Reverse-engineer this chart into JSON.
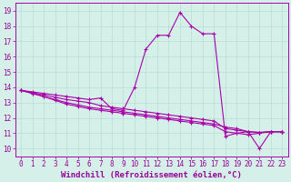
{
  "xlabel": "Windchill (Refroidissement éolien,°C)",
  "ylabel": "",
  "bg_color": "#d4f0e8",
  "line_color": "#aa00aa",
  "grid_color": "#b8ddd0",
  "xlim": [
    -0.5,
    23.5
  ],
  "ylim": [
    9.5,
    19.5
  ],
  "xticks": [
    0,
    1,
    2,
    3,
    4,
    5,
    6,
    7,
    8,
    9,
    10,
    11,
    12,
    13,
    14,
    15,
    16,
    17,
    18,
    19,
    20,
    21,
    22,
    23
  ],
  "yticks": [
    10,
    11,
    12,
    13,
    14,
    15,
    16,
    17,
    18,
    19
  ],
  "series": [
    [
      13.8,
      13.7,
      13.6,
      13.5,
      13.4,
      13.3,
      13.2,
      13.3,
      12.6,
      12.5,
      14.0,
      16.5,
      17.4,
      17.4,
      18.9,
      18.0,
      17.5,
      17.5,
      10.8,
      11.0,
      11.1,
      10.0,
      11.1,
      11.1
    ],
    [
      13.8,
      13.65,
      13.5,
      13.35,
      13.2,
      13.1,
      13.0,
      12.8,
      12.7,
      12.6,
      12.5,
      12.4,
      12.3,
      12.2,
      12.1,
      12.0,
      11.9,
      11.8,
      11.3,
      11.2,
      11.1,
      11.05,
      11.1,
      11.1
    ],
    [
      13.8,
      13.6,
      13.4,
      13.2,
      13.0,
      12.85,
      12.7,
      12.6,
      12.5,
      12.4,
      12.3,
      12.2,
      12.1,
      12.0,
      11.9,
      11.8,
      11.7,
      11.6,
      11.4,
      11.3,
      11.1,
      11.05,
      11.1,
      11.1
    ],
    [
      13.8,
      13.6,
      13.4,
      13.15,
      12.9,
      12.75,
      12.6,
      12.5,
      12.4,
      12.3,
      12.2,
      12.1,
      12.0,
      11.9,
      11.8,
      11.7,
      11.6,
      11.5,
      11.1,
      11.0,
      10.9,
      11.0,
      11.1,
      11.1
    ]
  ],
  "marker": "+",
  "markersize": 3,
  "linewidth": 0.8,
  "xlabel_fontsize": 6.5,
  "tick_fontsize": 5.5,
  "tick_color": "#990099",
  "label_color": "#990099",
  "spine_color": "#aa00aa"
}
